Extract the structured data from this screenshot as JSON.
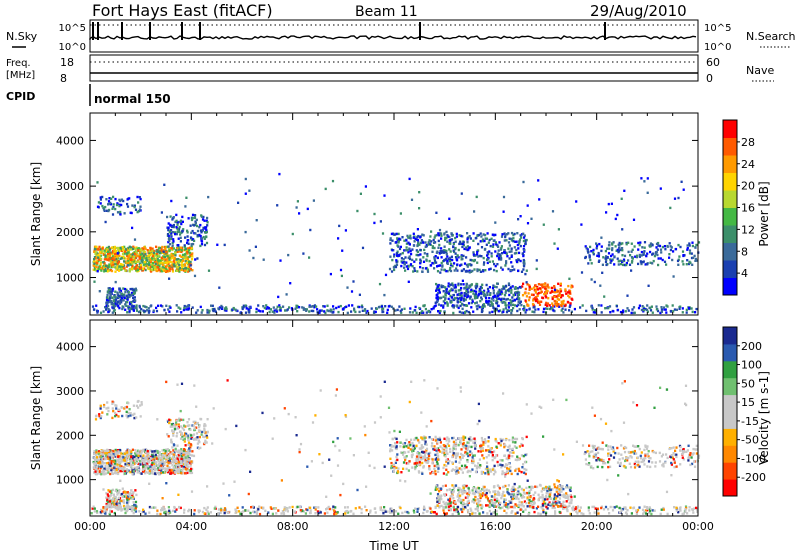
{
  "header": {
    "station": "Fort Hays East (fitACF)",
    "beam": "Beam 11",
    "date": "29/Aug/2010"
  },
  "noise_panel": {
    "left_label": "N.Sky",
    "right_label": "N.Search",
    "left_ticks": [
      "10^5",
      "10^0"
    ],
    "right_ticks": [
      "10^5",
      "10^0"
    ]
  },
  "freq_panel": {
    "left_label_1": "Freq.",
    "left_label_2": "[MHz]",
    "right_label": "Nave",
    "left_ticks": [
      "18",
      "8"
    ],
    "right_ticks": [
      "60",
      "0"
    ]
  },
  "cpid_panel": {
    "label": "CPID",
    "program": "normal 150"
  },
  "chart_data": [
    {
      "type": "heatmap",
      "name": "power",
      "ylabel": "Slant Range [km]",
      "xlabel": "",
      "ylim": [
        180,
        4600
      ],
      "yticks": [
        "4000",
        "3000",
        "2000",
        "1000"
      ],
      "xlim_hours": [
        0,
        24
      ],
      "xticks": [],
      "colorbar": {
        "label": "Power [dB]",
        "ticks": [
          "28",
          "24",
          "20",
          "16",
          "12",
          "8",
          "4"
        ],
        "range": [
          0,
          30
        ],
        "colors": [
          "#0000ff",
          "#1a3fb0",
          "#3a6a9a",
          "#3c8f6a",
          "#44b844",
          "#b8d830",
          "#ffd400",
          "#ff9a00",
          "#ff5a00",
          "#ff0000"
        ]
      }
    },
    {
      "type": "heatmap",
      "name": "velocity",
      "ylabel": "Slant Range [km]",
      "xlabel": "Time UT",
      "ylim": [
        180,
        4600
      ],
      "yticks": [
        "4000",
        "3000",
        "2000",
        "1000"
      ],
      "xlim_hours": [
        0,
        24
      ],
      "xticks": [
        "00:00",
        "04:00",
        "08:00",
        "12:00",
        "16:00",
        "20:00",
        "00:00"
      ],
      "colorbar": {
        "label": "Velocity [m s-1]",
        "ticks": [
          "200",
          "100",
          "50",
          "15",
          "-15",
          "-50",
          "-100",
          "-200"
        ],
        "range": [
          -250,
          250
        ],
        "colors": [
          "#ff0000",
          "#ff4400",
          "#ff8800",
          "#ffb000",
          "#c8c8c8",
          "#c8c8c8",
          "#70c070",
          "#30a040",
          "#2a5ab0",
          "#1a2a90"
        ]
      }
    }
  ]
}
